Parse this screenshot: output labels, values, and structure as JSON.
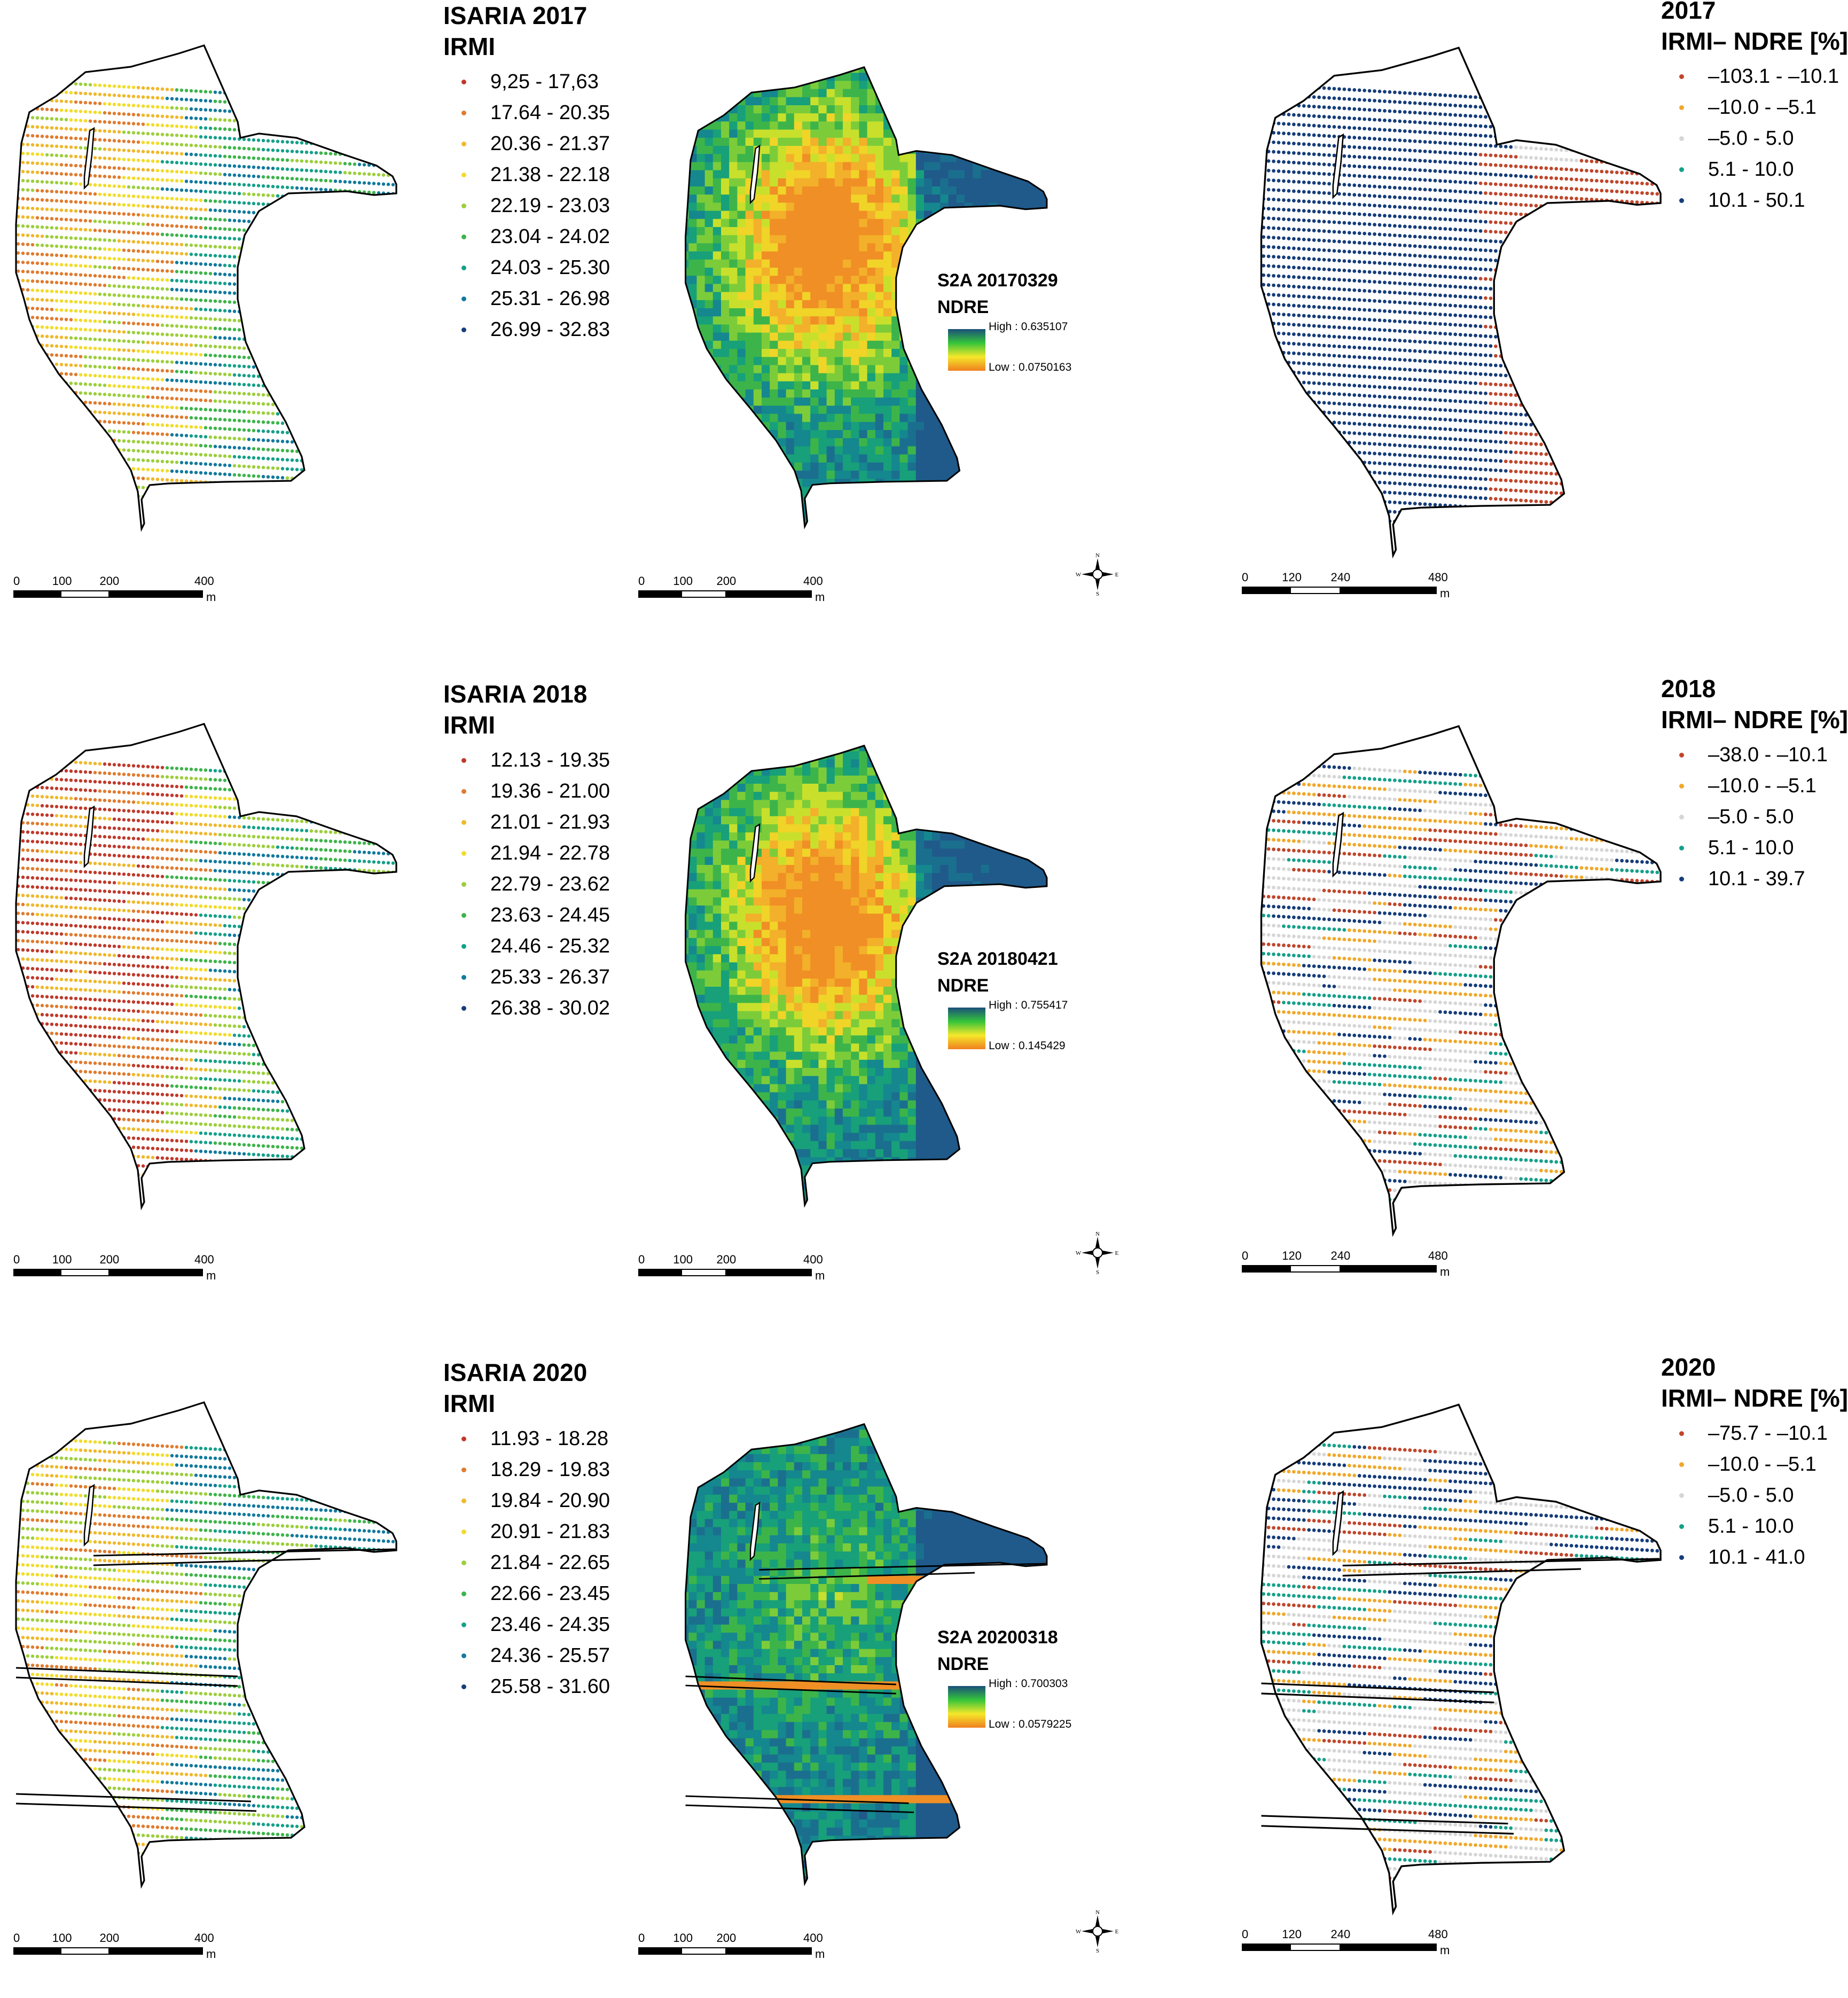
{
  "colors": {
    "class_9": [
      "#c0392b",
      "#e07b2f",
      "#f0b82b",
      "#f2dc2a",
      "#9ccf3a",
      "#3db44a",
      "#15a08a",
      "#127a9e",
      "#163d7a"
    ],
    "diff_5": [
      "#c0462b",
      "#f0a82b",
      "#d6d6d6",
      "#15a08a",
      "#163d7a"
    ],
    "ramp_top": "#1a4f7a",
    "ramp_mid": "#35c43a",
    "ramp_mid2": "#f5e82a",
    "ramp_bottom": "#f08020",
    "outline": "#000000"
  },
  "rows": [
    {
      "isaria_title": "ISARIA 2017",
      "irmi_title": "IRMI",
      "irmi_classes": [
        "9,25 - 17,63",
        "17.64 - 20.35",
        "20.36 - 21.37",
        "21.38 - 22.18",
        "22.19 - 23.03",
        "23.04 - 24.02",
        "24.03 - 25.30",
        "25.31 - 26.98",
        "26.99 - 32.83"
      ],
      "s2a_title": "S2A 20170329",
      "ndre_title": "NDRE",
      "ndre_high": "High : 0.635107",
      "ndre_low": "Low : 0.0750163",
      "diff_year": "2017",
      "diff_title": "IRMI– NDRE [%]",
      "diff_classes": [
        "–103.1 - –10.1",
        "–10.0 - –5.1",
        "–5.0 - 5.0",
        "5.1 - 10.0",
        "10.1 - 50.1"
      ]
    },
    {
      "isaria_title": "ISARIA 2018",
      "irmi_title": "IRMI",
      "irmi_classes": [
        "12.13 - 19.35",
        "19.36 - 21.00",
        "21.01 - 21.93",
        "21.94 - 22.78",
        "22.79 - 23.62",
        "23.63 - 24.45",
        "24.46 - 25.32",
        "25.33 - 26.37",
        "26.38 - 30.02"
      ],
      "s2a_title": "S2A 20180421",
      "ndre_title": "NDRE",
      "ndre_high": "High : 0.755417",
      "ndre_low": "Low : 0.145429",
      "diff_year": "2018",
      "diff_title": "IRMI– NDRE [%]",
      "diff_classes": [
        "–38.0 - –10.1",
        "–10.0 - –5.1",
        "–5.0 - 5.0",
        "5.1 - 10.0",
        "10.1 - 39.7"
      ]
    },
    {
      "isaria_title": "ISARIA 2020",
      "irmi_title": "IRMI",
      "irmi_classes": [
        "11.93 - 18.28",
        "18.29 - 19.83",
        "19.84 - 20.90",
        "20.91 - 21.83",
        "21.84 - 22.65",
        "22.66 - 23.45",
        "23.46 - 24.35",
        "24.36 - 25.57",
        "25.58 - 31.60"
      ],
      "s2a_title": "S2A 20200318",
      "ndre_title": "NDRE",
      "ndre_high": "High : 0.700303",
      "ndre_low": "Low : 0.0579225",
      "diff_year": "2020",
      "diff_title": "IRMI– NDRE [%]",
      "diff_classes": [
        "–75.7 - –10.1",
        "–10.0 - –5.1",
        "–5.0 - 5.0",
        "5.1 - 10.0",
        "10.1 - 41.0"
      ]
    }
  ],
  "scale_bar_left": {
    "ticks": [
      "0",
      "100",
      "200",
      "400"
    ],
    "unit": "m"
  },
  "scale_bar_mid": {
    "ticks": [
      "0",
      "100",
      "200",
      "400"
    ],
    "unit": "m"
  },
  "scale_bar_right": {
    "ticks": [
      "0",
      "120",
      "240",
      "480"
    ],
    "unit": "m"
  },
  "compass": {
    "n": "N",
    "s": "S",
    "e": "E",
    "w": "W"
  }
}
